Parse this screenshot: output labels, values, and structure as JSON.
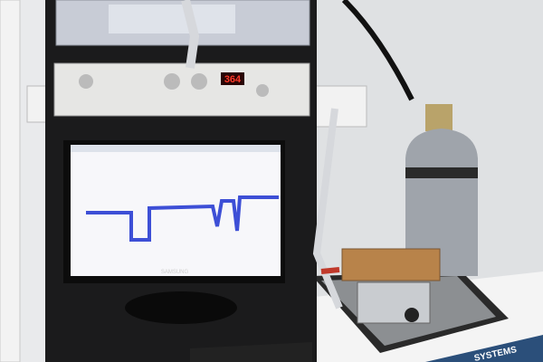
{
  "scene": {
    "display_reading": "364",
    "monitor_brand": "SAMSUNG",
    "table_label": "SYSTEMS"
  }
}
